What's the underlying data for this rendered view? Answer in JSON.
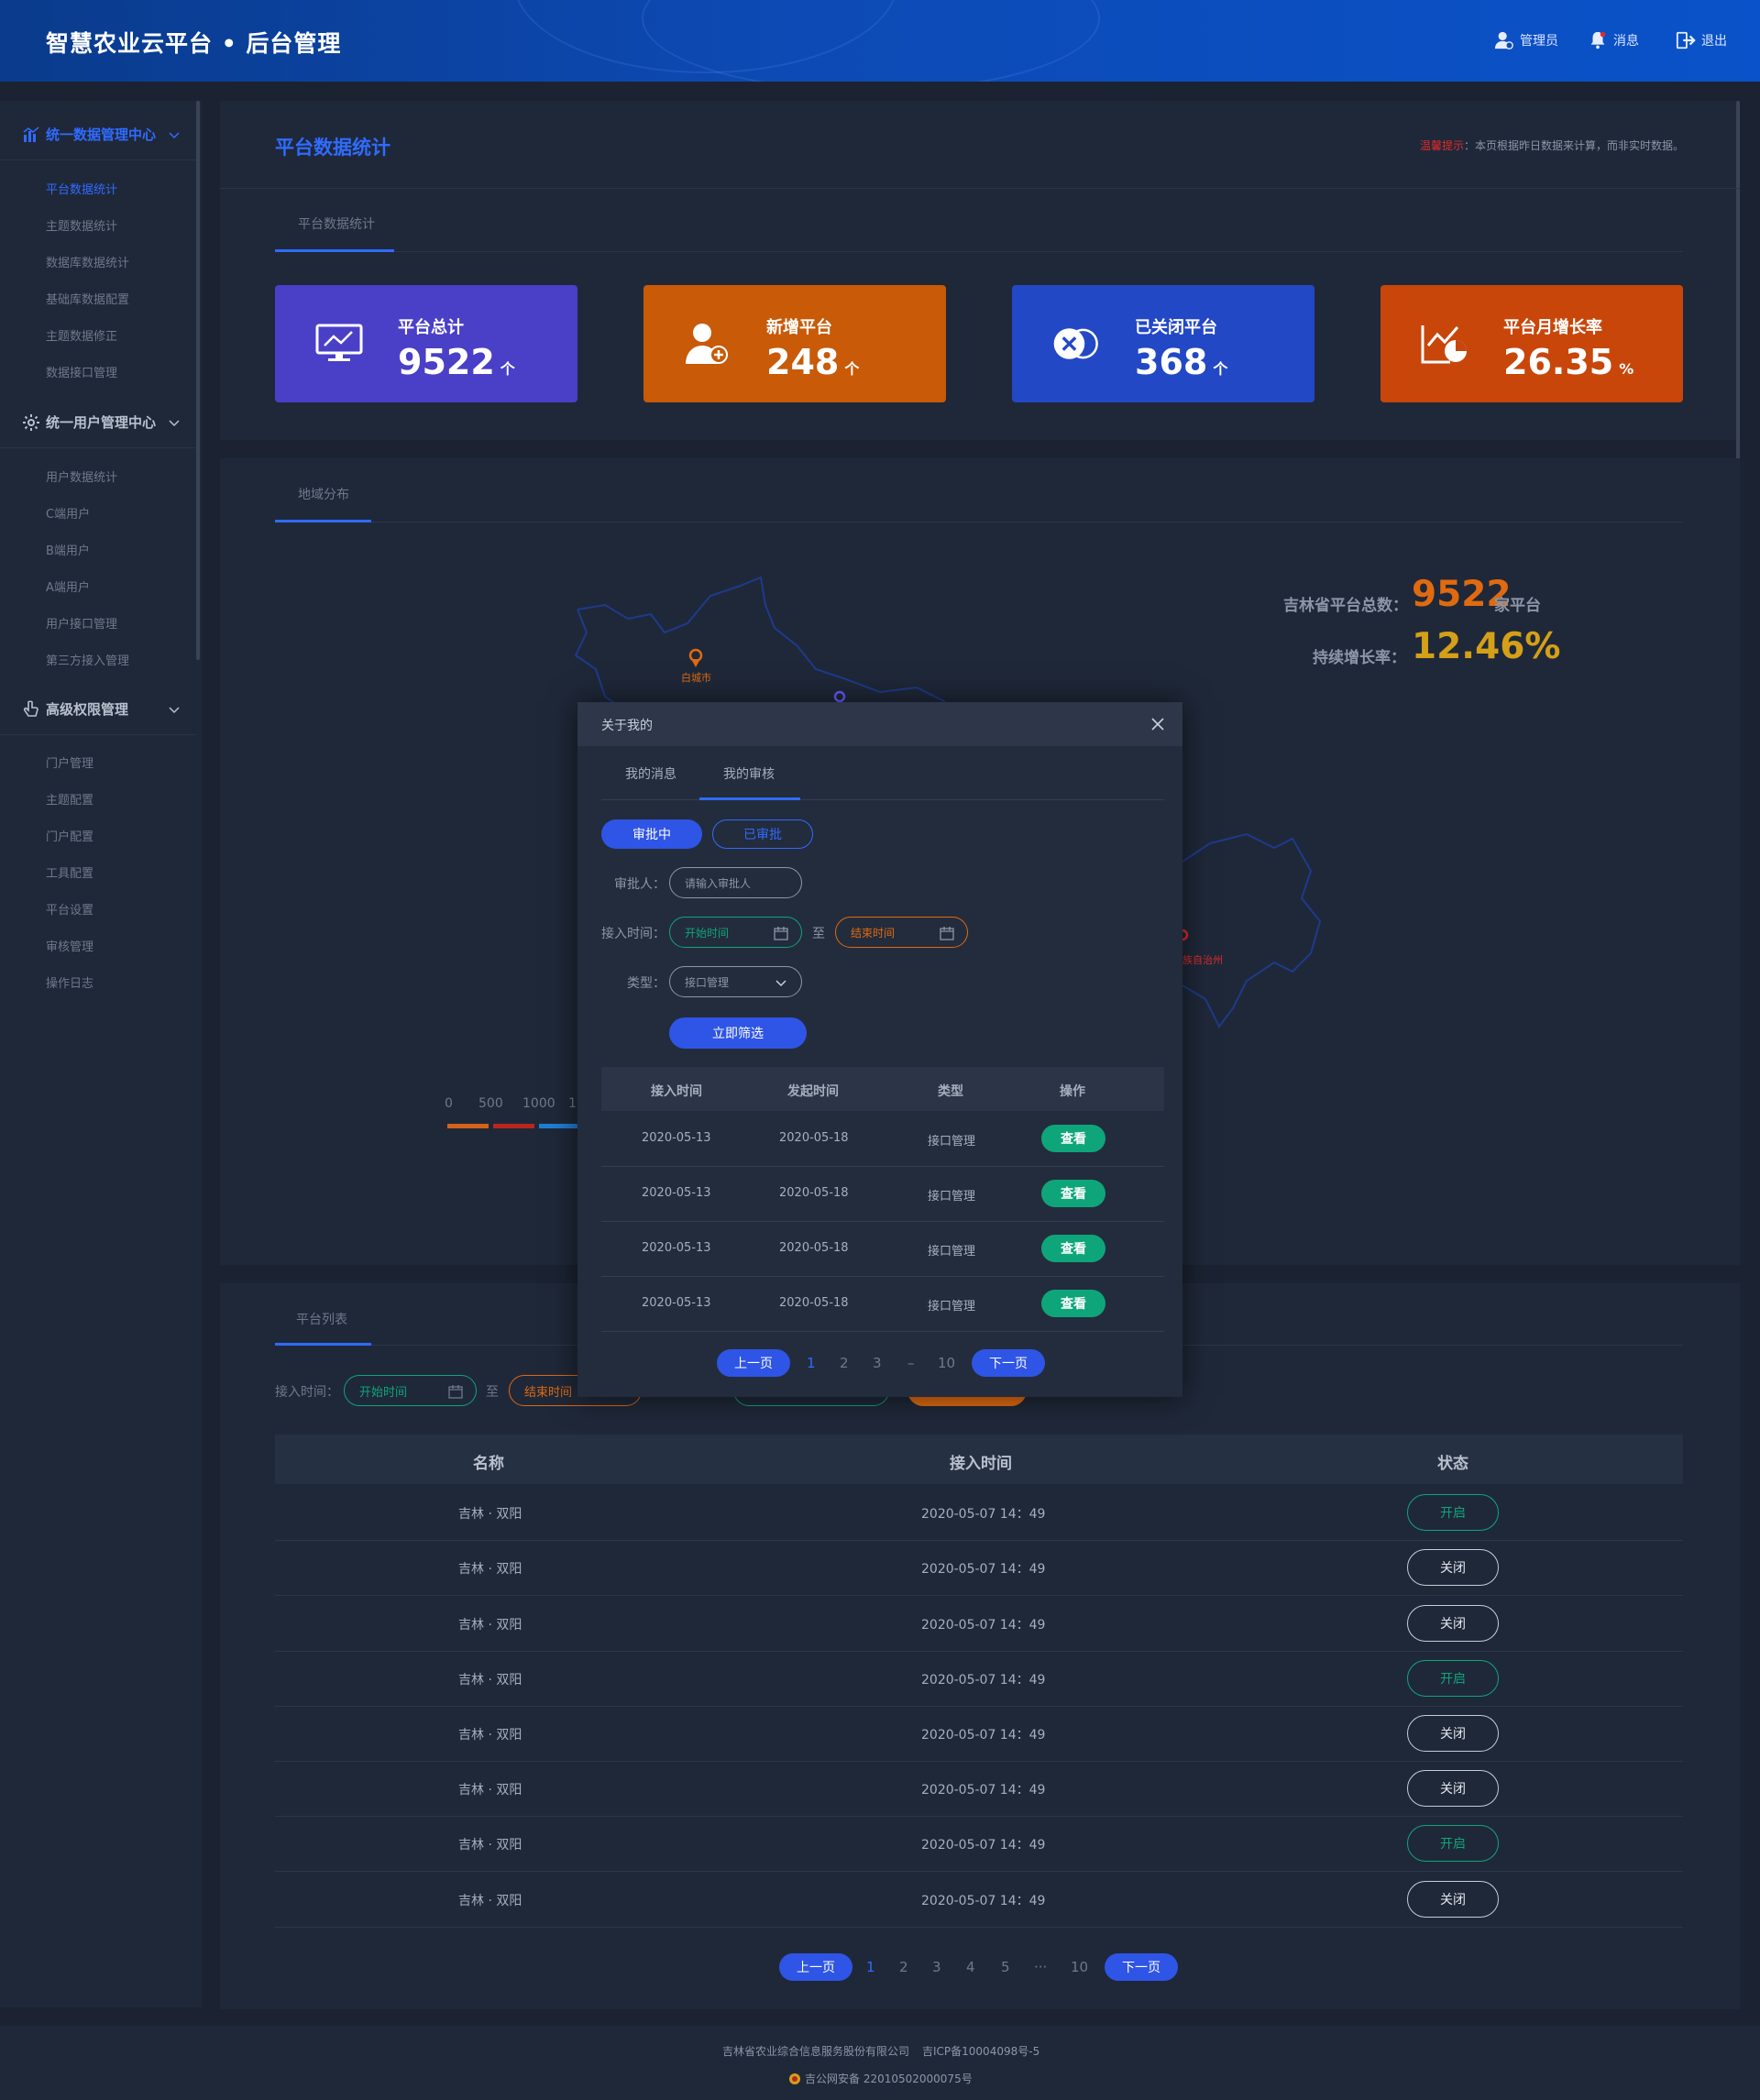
{
  "header": {
    "title": "智慧农业云平台 • 后台管理",
    "admin_label": "管理员",
    "message_label": "消息",
    "logout_label": "退出"
  },
  "sidebar": {
    "groups": [
      {
        "label": "统一数据管理中心",
        "icon": "bar-chart-icon",
        "active": true,
        "items": [
          "平台数据统计",
          "主题数据统计",
          "数据库数据统计",
          "基础库数据配置",
          "主题数据修正",
          "数据接口管理"
        ]
      },
      {
        "label": "统一用户管理中心",
        "icon": "gear-icon",
        "active": false,
        "items": [
          "用户数据统计",
          "C端用户",
          "B端用户",
          "A端用户",
          "用户接口管理",
          "第三方接入管理"
        ]
      },
      {
        "label": "高级权限管理",
        "icon": "pointer-hand-icon",
        "active": false,
        "items": [
          "门户管理",
          "主题配置",
          "门户配置",
          "工具配置",
          "平台设置",
          "审核管理",
          "操作日志"
        ]
      }
    ]
  },
  "page": {
    "title": "平台数据统计",
    "notice_warn": "温馨提示",
    "notice_text": "：本页根据昨日数据来计算，而非实时数据。",
    "stats_tab": "平台数据统计",
    "map_tab": "地域分布",
    "list_tab": "平台列表"
  },
  "stats": [
    {
      "label": "平台总计",
      "value": "9522",
      "unit": "个",
      "color": "#4a3fc7",
      "icon": "monitor-chart-icon"
    },
    {
      "label": "新增平台",
      "value": "248",
      "unit": "个",
      "color": "#c85a08",
      "icon": "add-user-icon"
    },
    {
      "label": "已关闭平台",
      "value": "368",
      "unit": "个",
      "color": "#2348c6",
      "icon": "close-circle-icon"
    },
    {
      "label": "平台月增长率",
      "value": "26.35",
      "unit": "%",
      "color": "#c8460a",
      "icon": "trend-chart-icon"
    }
  ],
  "map": {
    "total_label": "吉林省平台总数：",
    "total_value": "9522",
    "total_unit": "家平台",
    "growth_label": "持续增长率：",
    "growth_value": "12.46%",
    "city1": "白城市",
    "city2": "族自治州",
    "legend": [
      "0",
      "500",
      "1000",
      "1"
    ]
  },
  "list_filter": {
    "label": "接入时间：",
    "start": "开始时间",
    "to": "至",
    "end": "结束时间"
  },
  "table": {
    "headers": [
      "名称",
      "接入时间",
      "状态"
    ],
    "rows": [
      {
        "name": "吉林 · 双阳",
        "time": "2020-05-07  14：49",
        "status": "开启",
        "on": true
      },
      {
        "name": "吉林 · 双阳",
        "time": "2020-05-07  14：49",
        "status": "关闭",
        "on": false
      },
      {
        "name": "吉林 · 双阳",
        "time": "2020-05-07  14：49",
        "status": "关闭",
        "on": false
      },
      {
        "name": "吉林 · 双阳",
        "time": "2020-05-07  14：49",
        "status": "开启",
        "on": true
      },
      {
        "name": "吉林 · 双阳",
        "time": "2020-05-07  14：49",
        "status": "关闭",
        "on": false
      },
      {
        "name": "吉林 · 双阳",
        "time": "2020-05-07  14：49",
        "status": "关闭",
        "on": false
      },
      {
        "name": "吉林 · 双阳",
        "time": "2020-05-07  14：49",
        "status": "开启",
        "on": true
      },
      {
        "name": "吉林 · 双阳",
        "time": "2020-05-07  14：49",
        "status": "关闭",
        "on": false
      }
    ]
  },
  "pagination": {
    "prev": "上一页",
    "next": "下一页",
    "pages": [
      "1",
      "2",
      "3",
      "4",
      "5",
      "···",
      "10"
    ]
  },
  "footer": {
    "company": "吉林省农业综合信息服务股份有限公司",
    "icp": "吉ICP备10004098号-5",
    "police": "吉公网安备 22010502000075号"
  },
  "modal": {
    "title": "关于我的",
    "tabs": [
      "我的消息",
      "我的审核"
    ],
    "seg_pending": "审批中",
    "seg_done": "已审批",
    "approver_label": "审批人：",
    "approver_placeholder": "请输入审批人",
    "time_label": "接入时间：",
    "start_placeholder": "开始时间",
    "to": "至",
    "end_placeholder": "结束时间",
    "type_label": "类型：",
    "type_value": "接口管理",
    "filter_button": "立即筛选",
    "headers": [
      "接入时间",
      "发起时间",
      "类型",
      "操作"
    ],
    "rows": [
      {
        "access": "2020-05-13",
        "start": "2020-05-18",
        "type": "接口管理",
        "action": "查看"
      },
      {
        "access": "2020-05-13",
        "start": "2020-05-18",
        "type": "接口管理",
        "action": "查看"
      },
      {
        "access": "2020-05-13",
        "start": "2020-05-18",
        "type": "接口管理",
        "action": "查看"
      },
      {
        "access": "2020-05-13",
        "start": "2020-05-18",
        "type": "接口管理",
        "action": "查看"
      }
    ],
    "pagination": {
      "prev": "上一页",
      "next": "下一页",
      "pages": [
        "1",
        "2",
        "3",
        "–",
        "10"
      ]
    }
  }
}
